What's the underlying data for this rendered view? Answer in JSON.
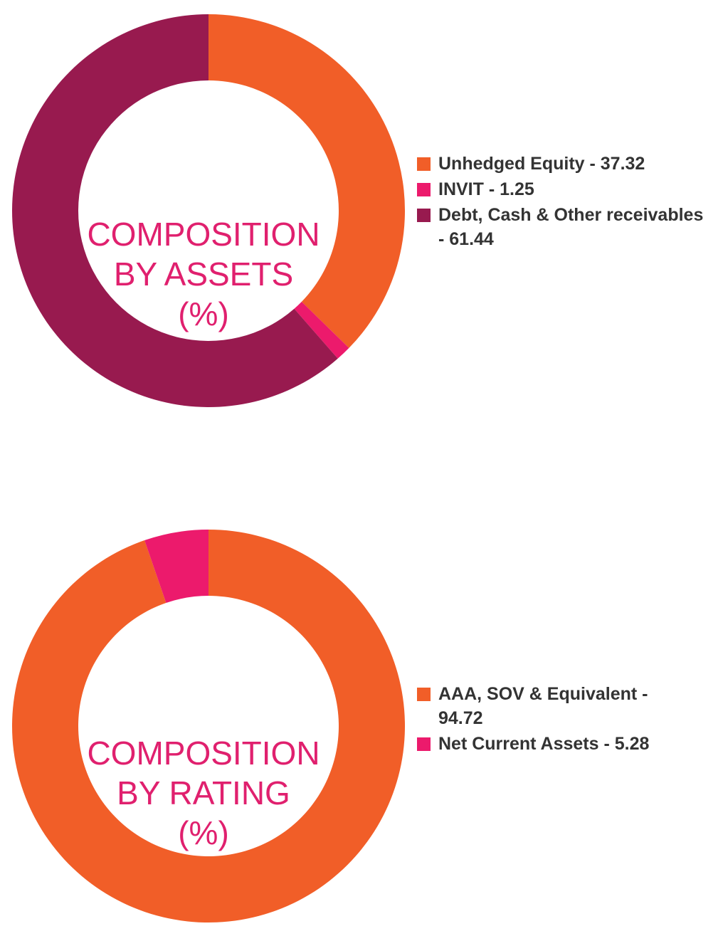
{
  "chart_data": [
    {
      "type": "pie",
      "title_lines": [
        "COMPOSITION",
        "BY ASSETS",
        "(%)"
      ],
      "slices": [
        {
          "label_lines": [
            "Unhedged Equity - 37.32"
          ],
          "value": 37.32,
          "color": "#f15e28"
        },
        {
          "label_lines": [
            "INVIT - 1.25"
          ],
          "value": 1.25,
          "color": "#ec1a6c"
        },
        {
          "label_lines": [
            "Debt, Cash & Other receivables",
            "- 61.44"
          ],
          "value": 61.44,
          "color": "#981a4f"
        }
      ],
      "legend_position": "right"
    },
    {
      "type": "pie",
      "title_lines": [
        "COMPOSITION",
        "BY RATING",
        "(%)"
      ],
      "slices": [
        {
          "label_lines": [
            "AAA, SOV & Equivalent -",
            "94.72"
          ],
          "value": 94.72,
          "color": "#f15e28"
        },
        {
          "label_lines": [
            "Net Current Assets - 5.28"
          ],
          "value": 5.28,
          "color": "#ec1a6c"
        }
      ],
      "legend_position": "right"
    }
  ]
}
